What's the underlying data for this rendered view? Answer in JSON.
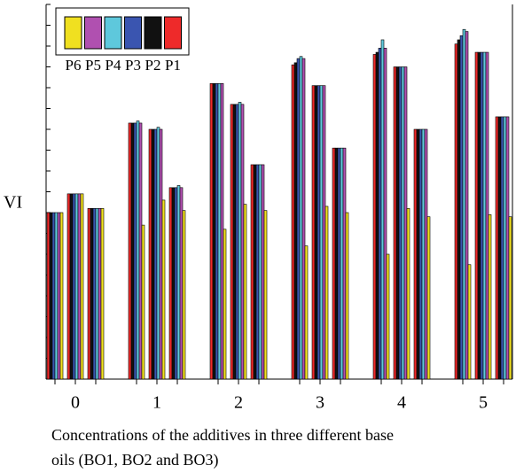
{
  "chart_data": {
    "type": "bar",
    "ylabel": "VI",
    "xlabel": [
      "Concentrations of the additives in three different base",
      "oils (BO1, BO2 and BO3)"
    ],
    "categories": [
      null,
      "0",
      null,
      null,
      "1",
      null,
      null,
      "2",
      null,
      null,
      "3",
      null,
      null,
      "4",
      null,
      null,
      "5",
      null
    ],
    "series": [
      {
        "name": "P1",
        "color": "#ee2a2a",
        "values": [
          8.0,
          8.9,
          8.2,
          12.3,
          12.0,
          9.2,
          14.2,
          13.2,
          10.3,
          15.1,
          14.1,
          11.1,
          15.6,
          15.0,
          12.0,
          16.1,
          15.7,
          12.6
        ]
      },
      {
        "name": "P2",
        "color": "#111111",
        "values": [
          8.0,
          8.9,
          8.2,
          12.3,
          12.0,
          9.2,
          14.2,
          13.2,
          10.3,
          15.2,
          14.1,
          11.1,
          15.7,
          15.0,
          12.0,
          16.3,
          15.7,
          12.6
        ]
      },
      {
        "name": "P3",
        "color": "#3a55b0",
        "values": [
          8.0,
          8.9,
          8.2,
          12.3,
          12.0,
          9.2,
          14.2,
          13.2,
          10.3,
          15.4,
          14.1,
          11.1,
          15.9,
          15.0,
          12.0,
          16.5,
          15.7,
          12.6
        ]
      },
      {
        "name": "P4",
        "color": "#5ec8dc",
        "values": [
          8.0,
          8.9,
          8.2,
          12.4,
          12.1,
          9.3,
          14.2,
          13.3,
          10.3,
          15.5,
          14.1,
          11.1,
          16.3,
          15.0,
          12.0,
          16.8,
          15.7,
          12.6
        ]
      },
      {
        "name": "P5",
        "color": "#b050b0",
        "values": [
          8.0,
          8.9,
          8.2,
          12.3,
          12.0,
          9.2,
          14.2,
          13.2,
          10.3,
          15.4,
          14.1,
          11.1,
          15.9,
          15.0,
          12.0,
          16.7,
          15.7,
          12.6
        ]
      },
      {
        "name": "P6",
        "color": "#f0e020",
        "values": [
          8.0,
          8.9,
          8.2,
          7.4,
          8.6,
          8.1,
          7.2,
          8.4,
          8.1,
          6.4,
          8.3,
          8.0,
          6.0,
          8.2,
          7.8,
          5.5,
          7.9,
          7.8
        ]
      }
    ],
    "ylim": [
      0,
      18
    ],
    "yticks": [
      0,
      1,
      2,
      3,
      4,
      5,
      6,
      7,
      8,
      9,
      10,
      11,
      12,
      13,
      14,
      15,
      16,
      17,
      18
    ]
  }
}
